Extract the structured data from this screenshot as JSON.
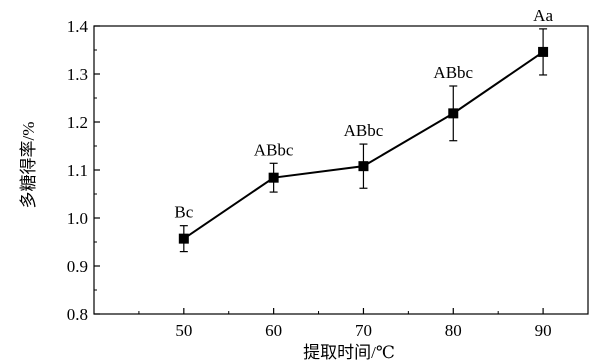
{
  "chart_data": {
    "type": "line",
    "title": "",
    "xlabel": "提取时间/℃",
    "ylabel": "多糖得率/%",
    "x": [
      50,
      60,
      70,
      80,
      90
    ],
    "xticks": [
      "50",
      "60",
      "70",
      "80",
      "90"
    ],
    "xlim": [
      40,
      95
    ],
    "ylim": [
      0.8,
      1.4
    ],
    "yticks": [
      "0.8",
      "0.9",
      "1.0",
      "1.1",
      "1.2",
      "1.3",
      "1.4"
    ],
    "series": [
      {
        "values": [
          0.957,
          1.084,
          1.108,
          1.218,
          1.346
        ],
        "error": [
          0.027,
          0.03,
          0.046,
          0.057,
          0.048
        ],
        "labels": [
          "Bc",
          "ABbc",
          "ABbc",
          "ABbc",
          "Aa"
        ],
        "color": "#000000",
        "marker": "square"
      }
    ],
    "grid": false,
    "legend": "none"
  }
}
